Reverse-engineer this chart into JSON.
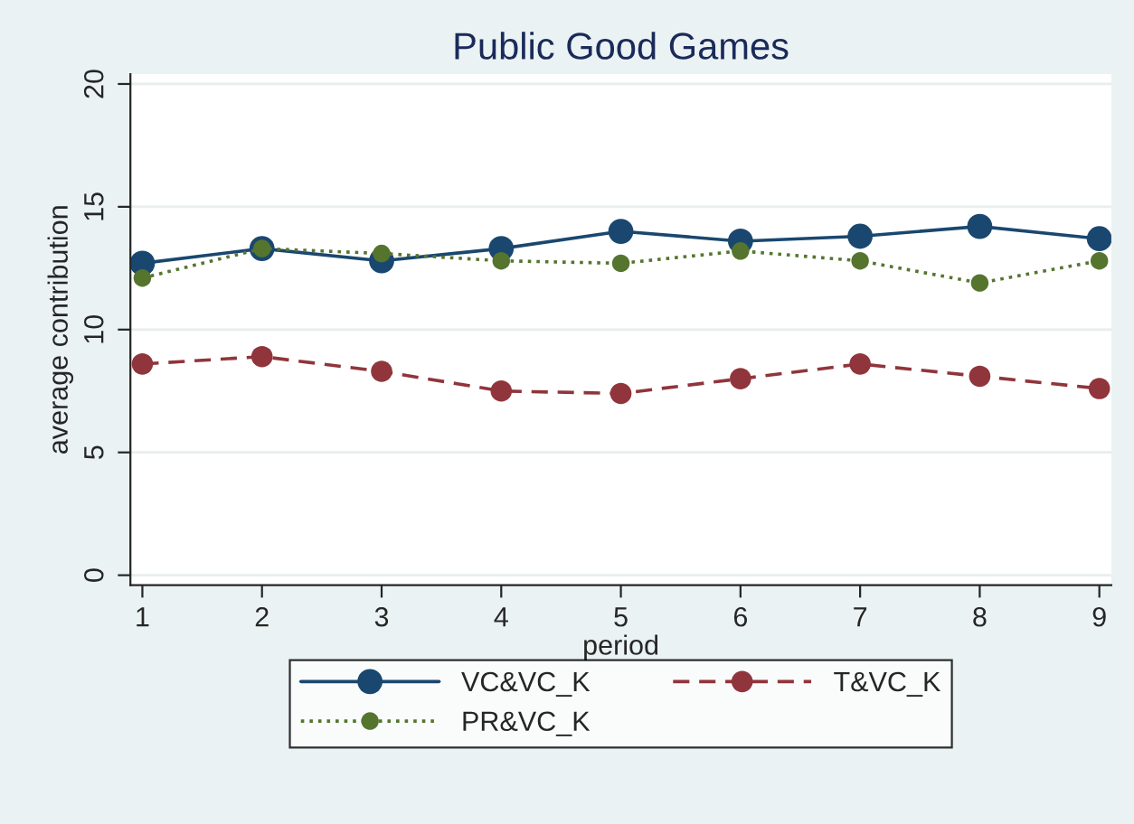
{
  "chart_data": {
    "type": "line",
    "title": "Public Good Games",
    "xlabel": "period",
    "ylabel": "average contribution",
    "x": [
      1,
      2,
      3,
      4,
      5,
      6,
      7,
      8,
      9
    ],
    "series": [
      {
        "name": "VC&VC_K",
        "color": "#1a476f",
        "line_style": "solid",
        "values": [
          12.7,
          13.3,
          12.8,
          13.3,
          14.0,
          13.6,
          13.8,
          14.2,
          13.7
        ]
      },
      {
        "name": "T&VC_K",
        "color": "#90353b",
        "line_style": "dashed",
        "values": [
          8.6,
          8.9,
          8.3,
          7.5,
          7.4,
          8.0,
          8.6,
          8.1,
          7.6
        ]
      },
      {
        "name": "PR&VC_K",
        "color": "#55752f",
        "line_style": "dotted",
        "values": [
          12.1,
          13.3,
          13.1,
          12.8,
          12.7,
          13.2,
          12.8,
          11.9,
          12.8
        ]
      }
    ],
    "marker": "circle",
    "xlim": [
      0.9,
      9.1
    ],
    "xticks": [
      1,
      2,
      3,
      4,
      5,
      6,
      7,
      8,
      9
    ],
    "ylim": [
      -0.4,
      20.4
    ],
    "yticks": [
      0,
      5,
      10,
      15,
      20
    ],
    "grid": "y",
    "legend": "bottom"
  }
}
